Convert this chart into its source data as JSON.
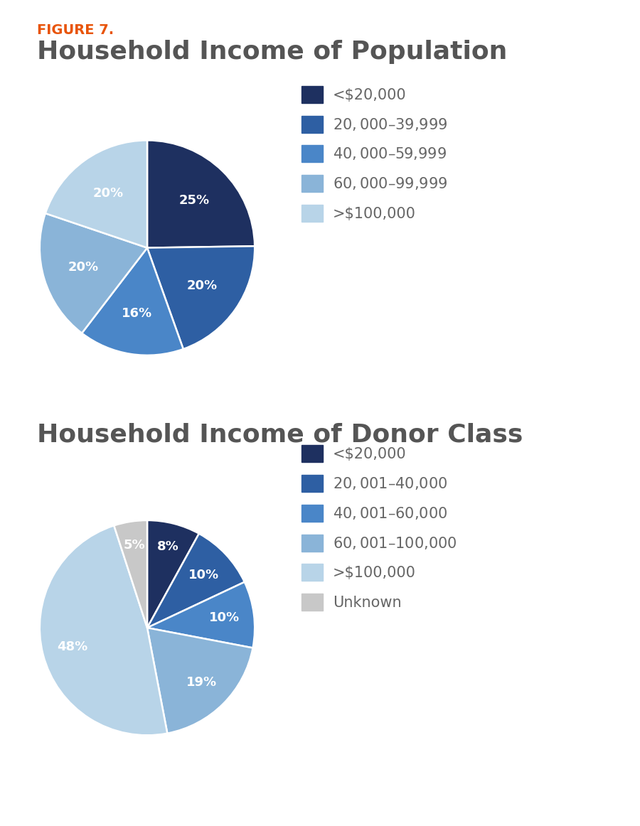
{
  "fig_label": "FIGURE 7.",
  "fig_label_color": "#E8540A",
  "fig_label_fontsize": 14,
  "chart1_title": "Household Income of Population",
  "chart1_title_fontsize": 26,
  "chart1_title_color": "#555555",
  "chart1_values": [
    25,
    20,
    16,
    20,
    20
  ],
  "chart1_labels": [
    "25%",
    "20%",
    "16%",
    "20%",
    "20%"
  ],
  "chart1_colors": [
    "#1e3060",
    "#2e5fa3",
    "#4a86c8",
    "#8ab4d8",
    "#b8d4e8"
  ],
  "chart1_legend_labels": [
    "<$20,000",
    "$20,000–$39,999",
    "$40,000–$59,999",
    "$60,000–$99,999",
    ">$100,000"
  ],
  "chart1_startangle": 90,
  "chart2_title": "Household Income of Donor Class",
  "chart2_title_fontsize": 26,
  "chart2_title_color": "#555555",
  "chart2_values": [
    8,
    10,
    10,
    19,
    48,
    5
  ],
  "chart2_labels": [
    "8%",
    "10%",
    "10%",
    "19%",
    "48%",
    "5%"
  ],
  "chart2_colors": [
    "#1e3060",
    "#2e5fa3",
    "#4a86c8",
    "#8ab4d8",
    "#b8d4e8",
    "#c8c8c8"
  ],
  "chart2_legend_labels": [
    "<$20,000",
    "$20,001–$40,000",
    "$40,001–$60,000",
    "$60,001–$100,000",
    ">$100,000",
    "Unknown"
  ],
  "chart2_startangle": 90,
  "background_color": "#ffffff",
  "legend_fontsize": 15,
  "legend_label_color": "#666666",
  "wedge_text_color": "#ffffff",
  "wedge_text_fontsize": 13
}
